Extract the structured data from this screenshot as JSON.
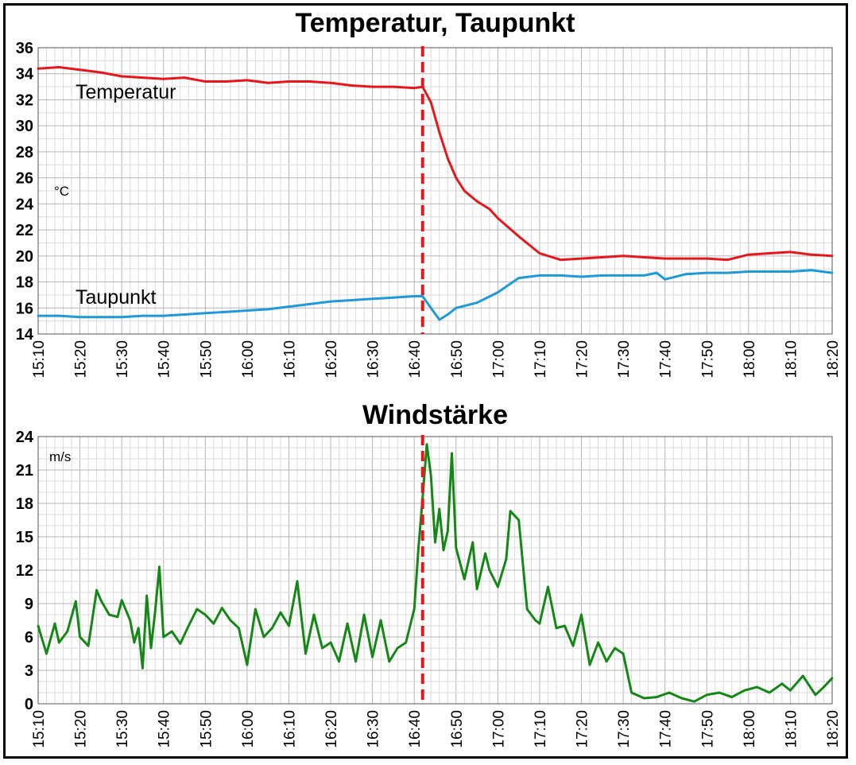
{
  "chart_data": [
    {
      "type": "line",
      "title": "Temperatur, Taupunkt",
      "ylabel": "°C",
      "ylim": [
        14,
        36
      ],
      "yticks": [
        14,
        16,
        18,
        20,
        22,
        24,
        26,
        28,
        30,
        32,
        34,
        36
      ],
      "x_tick_labels": [
        "15:10",
        "15:20",
        "15:30",
        "15:40",
        "15:50",
        "16:00",
        "16:10",
        "16:20",
        "16:30",
        "16:40",
        "16:50",
        "17:00",
        "17:10",
        "17:20",
        "17:30",
        "17:40",
        "17:50",
        "18:00",
        "18:10",
        "18:20"
      ],
      "xlim": [
        "15:10",
        "18:20"
      ],
      "marker_time": "16:42",
      "marker_color": "#e8161b",
      "grid": true,
      "series": [
        {
          "name": "Temperatur",
          "color": "#e8161b",
          "x": [
            "15:10",
            "15:15",
            "15:20",
            "15:25",
            "15:30",
            "15:35",
            "15:40",
            "15:45",
            "15:50",
            "15:55",
            "16:00",
            "16:05",
            "16:10",
            "16:15",
            "16:20",
            "16:25",
            "16:30",
            "16:35",
            "16:40",
            "16:42",
            "16:44",
            "16:46",
            "16:48",
            "16:50",
            "16:52",
            "16:55",
            "16:58",
            "17:00",
            "17:05",
            "17:10",
            "17:15",
            "17:20",
            "17:25",
            "17:30",
            "17:35",
            "17:40",
            "17:45",
            "17:50",
            "17:55",
            "18:00",
            "18:05",
            "18:10",
            "18:15",
            "18:20"
          ],
          "values": [
            34.4,
            34.5,
            34.3,
            34.1,
            33.8,
            33.7,
            33.6,
            33.7,
            33.4,
            33.4,
            33.5,
            33.3,
            33.4,
            33.4,
            33.3,
            33.1,
            33.0,
            33.0,
            32.9,
            33.0,
            31.8,
            29.5,
            27.5,
            26.0,
            25.0,
            24.2,
            23.6,
            22.9,
            21.5,
            20.2,
            19.7,
            19.8,
            19.9,
            20.0,
            19.9,
            19.8,
            19.8,
            19.8,
            19.7,
            20.1,
            20.2,
            20.3,
            20.1,
            20.0
          ]
        },
        {
          "name": "Taupunkt",
          "color": "#1e9ad8",
          "x": [
            "15:10",
            "15:15",
            "15:20",
            "15:25",
            "15:30",
            "15:35",
            "15:40",
            "15:45",
            "15:50",
            "15:55",
            "16:00",
            "16:05",
            "16:10",
            "16:15",
            "16:20",
            "16:25",
            "16:30",
            "16:35",
            "16:40",
            "16:42",
            "16:44",
            "16:46",
            "16:48",
            "16:50",
            "16:55",
            "17:00",
            "17:05",
            "17:10",
            "17:15",
            "17:20",
            "17:25",
            "17:30",
            "17:35",
            "17:38",
            "17:40",
            "17:45",
            "17:50",
            "17:55",
            "18:00",
            "18:05",
            "18:10",
            "18:15",
            "18:20"
          ],
          "values": [
            15.4,
            15.4,
            15.3,
            15.3,
            15.3,
            15.4,
            15.4,
            15.5,
            15.6,
            15.7,
            15.8,
            15.9,
            16.1,
            16.3,
            16.5,
            16.6,
            16.7,
            16.8,
            16.9,
            16.9,
            16.0,
            15.1,
            15.5,
            16.0,
            16.4,
            17.2,
            18.3,
            18.5,
            18.5,
            18.4,
            18.5,
            18.5,
            18.5,
            18.7,
            18.2,
            18.6,
            18.7,
            18.7,
            18.8,
            18.8,
            18.8,
            18.9,
            18.7
          ]
        }
      ]
    },
    {
      "type": "line",
      "title": "Windstärke",
      "ylabel": "m/s",
      "ylim": [
        0,
        24
      ],
      "yticks": [
        0,
        3,
        6,
        9,
        12,
        15,
        18,
        21,
        24
      ],
      "x_tick_labels": [
        "15:10",
        "15:20",
        "15:30",
        "15:40",
        "15:50",
        "16:00",
        "16:10",
        "16:20",
        "16:30",
        "16:40",
        "16:50",
        "17:00",
        "17:10",
        "17:20",
        "17:30",
        "17:40",
        "17:50",
        "18:00",
        "18:10",
        "18:20"
      ],
      "xlim": [
        "15:10",
        "18:20"
      ],
      "marker_time": "16:42",
      "marker_color": "#e8161b",
      "grid": true,
      "series": [
        {
          "color": "#158716",
          "x": [
            "15:10",
            "15:12",
            "15:14",
            "15:15",
            "15:17",
            "15:19",
            "15:20",
            "15:22",
            "15:24",
            "15:25",
            "15:27",
            "15:29",
            "15:30",
            "15:32",
            "15:33",
            "15:34",
            "15:35",
            "15:36",
            "15:37",
            "15:38",
            "15:39",
            "15:40",
            "15:42",
            "15:44",
            "15:46",
            "15:48",
            "15:50",
            "15:52",
            "15:54",
            "15:56",
            "15:58",
            "16:00",
            "16:02",
            "16:04",
            "16:06",
            "16:08",
            "16:10",
            "16:12",
            "16:14",
            "16:16",
            "16:18",
            "16:20",
            "16:22",
            "16:24",
            "16:26",
            "16:28",
            "16:30",
            "16:32",
            "16:34",
            "16:36",
            "16:38",
            "16:40",
            "16:41",
            "16:42",
            "16:43",
            "16:44",
            "16:45",
            "16:46",
            "16:47",
            "16:48",
            "16:49",
            "16:50",
            "16:52",
            "16:54",
            "16:55",
            "16:57",
            "16:58",
            "17:00",
            "17:02",
            "17:03",
            "17:05",
            "17:07",
            "17:09",
            "17:10",
            "17:12",
            "17:14",
            "17:16",
            "17:18",
            "17:20",
            "17:22",
            "17:24",
            "17:26",
            "17:28",
            "17:30",
            "17:32",
            "17:35",
            "17:38",
            "17:41",
            "17:44",
            "17:47",
            "17:50",
            "17:53",
            "17:56",
            "17:59",
            "18:02",
            "18:05",
            "18:08",
            "18:10",
            "18:13",
            "18:16",
            "18:18",
            "18:20"
          ],
          "values": [
            7.0,
            4.5,
            7.2,
            5.5,
            6.5,
            9.2,
            6.0,
            5.2,
            10.2,
            9.3,
            8.0,
            7.8,
            9.3,
            7.5,
            5.5,
            6.8,
            3.2,
            9.7,
            5.0,
            8.3,
            12.3,
            6.0,
            6.5,
            5.4,
            7.0,
            8.5,
            8.0,
            7.2,
            8.6,
            7.5,
            6.8,
            3.5,
            8.5,
            6.0,
            6.8,
            8.2,
            7.0,
            11.0,
            4.5,
            8.0,
            5.0,
            5.5,
            3.8,
            7.2,
            3.8,
            8.0,
            4.2,
            7.5,
            3.8,
            5.0,
            5.5,
            8.5,
            14.0,
            18.5,
            23.3,
            20.5,
            14.5,
            17.5,
            13.8,
            15.5,
            22.5,
            14.0,
            11.2,
            14.5,
            10.3,
            13.5,
            12.0,
            10.5,
            13.0,
            17.3,
            16.5,
            8.5,
            7.5,
            7.2,
            10.5,
            6.8,
            7.0,
            5.2,
            8.0,
            3.5,
            5.5,
            3.8,
            5.0,
            4.5,
            1.0,
            0.5,
            0.6,
            1.0,
            0.5,
            0.2,
            0.8,
            1.0,
            0.6,
            1.2,
            1.5,
            1.0,
            1.8,
            1.2,
            2.5,
            0.8,
            1.5,
            2.3
          ]
        }
      ]
    }
  ]
}
